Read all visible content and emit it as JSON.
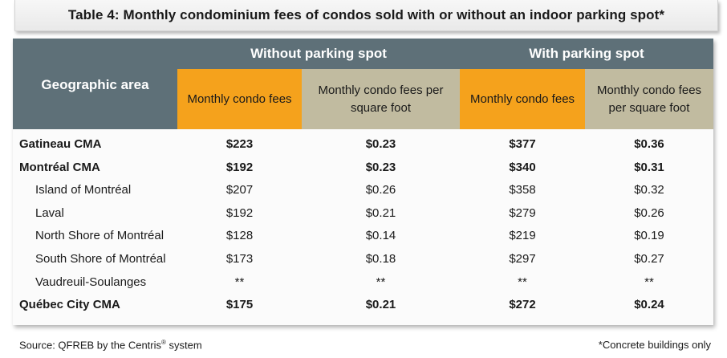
{
  "title": "Table 4: Monthly condominium fees of condos sold with or without an indoor parking spot*",
  "header": {
    "geo": "Geographic area",
    "without": "Without parking spot",
    "with": "With parking spot",
    "fees": "Monthly condo fees",
    "per_sqft_line1": "Monthly condo fees per",
    "per_sqft_line2": "square foot",
    "per_sqft2_line1": "Monthly condo fees",
    "per_sqft2_line2": "per square foot"
  },
  "rows": [
    {
      "area": "Gatineau CMA",
      "bold": true,
      "wo_fee": "$223",
      "wo_sqft": "$0.23",
      "w_fee": "$377",
      "w_sqft": "$0.36"
    },
    {
      "area": "Montréal CMA",
      "bold": true,
      "wo_fee": "$192",
      "wo_sqft": "$0.23",
      "w_fee": "$340",
      "w_sqft": "$0.31"
    },
    {
      "area": "Island of Montréal",
      "bold": false,
      "wo_fee": "$207",
      "wo_sqft": "$0.26",
      "w_fee": "$358",
      "w_sqft": "$0.32"
    },
    {
      "area": "Laval",
      "bold": false,
      "wo_fee": "$192",
      "wo_sqft": "$0.21",
      "w_fee": "$279",
      "w_sqft": "$0.26"
    },
    {
      "area": "North Shore of Montréal",
      "bold": false,
      "wo_fee": "$128",
      "wo_sqft": "$0.14",
      "w_fee": "$219",
      "w_sqft": "$0.19"
    },
    {
      "area": "South Shore of Montréal",
      "bold": false,
      "wo_fee": "$173",
      "wo_sqft": "$0.18",
      "w_fee": "$297",
      "w_sqft": "$0.27"
    },
    {
      "area": "Vaudreuil-Soulanges",
      "bold": false,
      "wo_fee": "**",
      "wo_sqft": "**",
      "w_fee": "**",
      "w_sqft": "**"
    },
    {
      "area": "Québec City CMA",
      "bold": true,
      "wo_fee": "$175",
      "wo_sqft": "$0.21",
      "w_fee": "$272",
      "w_sqft": "$0.24"
    }
  ],
  "footer": {
    "source_prefix": "Source: QFREB by the Centris",
    "registered": "®",
    "source_suffix": " system",
    "note": "*Concrete buildings only"
  }
}
